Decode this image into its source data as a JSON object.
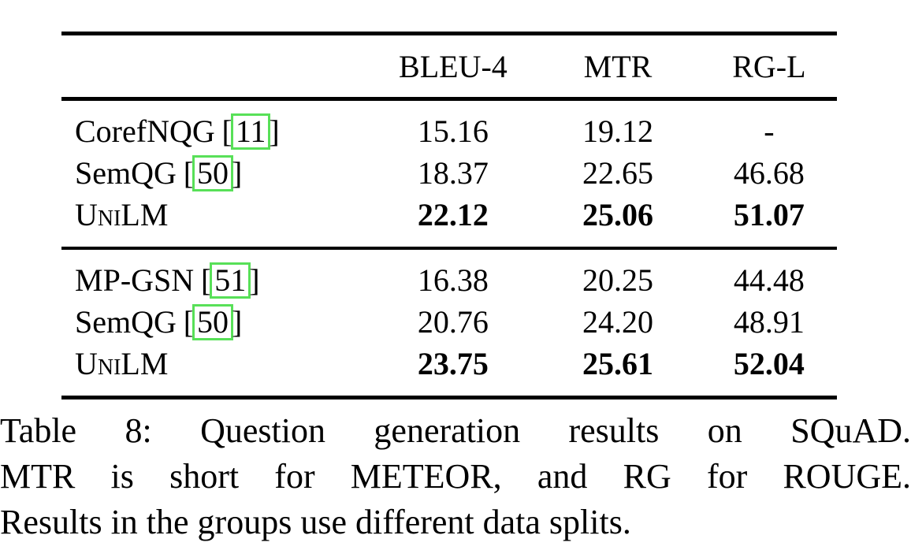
{
  "table": {
    "headers": [
      "BLEU-4",
      "MTR",
      "RG-L"
    ],
    "cite_open": "[",
    "cite_close": "]",
    "link_box_color": "#58e058",
    "groups": [
      {
        "rows": [
          {
            "method": "CorefNQG",
            "cite": "11",
            "values": [
              "15.16",
              "19.12",
              "-"
            ]
          },
          {
            "method": "SemQG",
            "cite": "50",
            "values": [
              "18.37",
              "22.65",
              "46.68"
            ]
          },
          {
            "method": "UniLM",
            "cite": "",
            "values": [
              "22.12",
              "25.06",
              "51.07"
            ]
          }
        ]
      },
      {
        "rows": [
          {
            "method": "MP-GSN",
            "cite": "51",
            "values": [
              "16.38",
              "20.25",
              "44.48"
            ]
          },
          {
            "method": "SemQG",
            "cite": "50",
            "values": [
              "20.76",
              "24.20",
              "48.91"
            ]
          },
          {
            "method": "UniLM",
            "cite": "",
            "values": [
              "23.75",
              "25.61",
              "52.04"
            ]
          }
        ]
      }
    ]
  },
  "caption": {
    "lines": [
      "Table 8: Question generation results on SQuAD.",
      "MTR is short for METEOR, and RG for ROUGE.",
      "Results in the groups use different data splits."
    ]
  }
}
